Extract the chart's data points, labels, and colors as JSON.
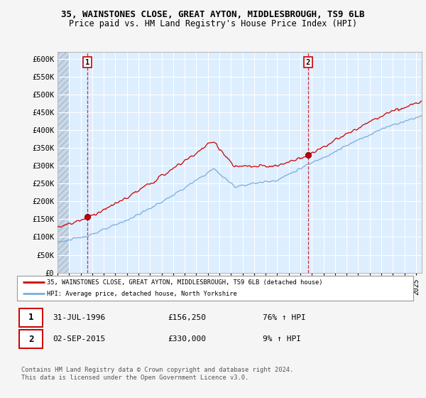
{
  "title_line1": "35, WAINSTONES CLOSE, GREAT AYTON, MIDDLESBROUGH, TS9 6LB",
  "title_line2": "Price paid vs. HM Land Registry's House Price Index (HPI)",
  "ylim": [
    0,
    620000
  ],
  "yticks": [
    0,
    50000,
    100000,
    150000,
    200000,
    250000,
    300000,
    350000,
    400000,
    450000,
    500000,
    550000,
    600000
  ],
  "ytick_labels": [
    "£0",
    "£50K",
    "£100K",
    "£150K",
    "£200K",
    "£250K",
    "£300K",
    "£350K",
    "£400K",
    "£450K",
    "£500K",
    "£550K",
    "£600K"
  ],
  "xmin": 1994.0,
  "xmax": 2025.5,
  "sale1_year_float": 1996.583,
  "sale1_price": 156250,
  "sale2_year_float": 2015.67,
  "sale2_price": 330000,
  "line_color_house": "#cc0000",
  "line_color_hpi": "#7aaddb",
  "legend_house": "35, WAINSTONES CLOSE, GREAT AYTON, MIDDLESBROUGH, TS9 6LB (detached house)",
  "legend_hpi": "HPI: Average price, detached house, North Yorkshire",
  "annotation1_date": "31-JUL-1996",
  "annotation1_price": "£156,250",
  "annotation1_hpi": "76% ↑ HPI",
  "annotation2_date": "02-SEP-2015",
  "annotation2_price": "£330,000",
  "annotation2_hpi": "9% ↑ HPI",
  "copyright": "Contains HM Land Registry data © Crown copyright and database right 2024.\nThis data is licensed under the Open Government Licence v3.0.",
  "plot_bg": "#ddeeff",
  "fig_bg": "#f5f5f5"
}
